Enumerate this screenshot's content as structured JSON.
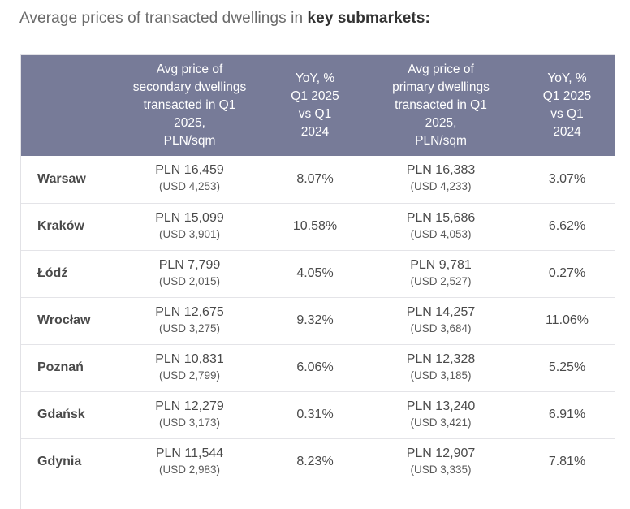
{
  "heading": {
    "prefix": "Average prices of transacted dwellings in ",
    "bold": "key submarkets:"
  },
  "table": {
    "headers": [
      "",
      "Avg price of secondary dwellings transacted in Q1 2025, PLN/sqm",
      "YoY, % Q1 2025 vs Q1 2024",
      "Avg price of primary dwellings transacted in Q1 2025, PLN/sqm",
      "YoY, % Q1 2025 vs Q1 2024"
    ],
    "header_lines": [
      [
        ""
      ],
      [
        "Avg price of",
        "secondary dwellings",
        "transacted in Q1",
        "2025,",
        "PLN/sqm"
      ],
      [
        "YoY, %",
        "Q1 2025",
        "vs Q1",
        "2024"
      ],
      [
        "Avg price of",
        "primary dwellings",
        "transacted in Q1",
        "2025,",
        "PLN/sqm"
      ],
      [
        "YoY, %",
        "Q1 2025",
        "vs Q1",
        "2024"
      ]
    ],
    "rows": [
      {
        "city": "Warsaw",
        "sec_pln": "PLN 16,459",
        "sec_usd": "(USD 4,253)",
        "sec_yoy": "8.07%",
        "pri_pln": "PLN 16,383",
        "pri_usd": "(USD 4,233)",
        "pri_yoy": "3.07%"
      },
      {
        "city": "Kraków",
        "sec_pln": "PLN 15,099",
        "sec_usd": "(USD 3,901)",
        "sec_yoy": "10.58%",
        "pri_pln": "PLN 15,686",
        "pri_usd": "(USD 4,053)",
        "pri_yoy": "6.62%"
      },
      {
        "city": "Łódź",
        "sec_pln": "PLN 7,799",
        "sec_usd": "(USD 2,015)",
        "sec_yoy": "4.05%",
        "pri_pln": "PLN 9,781",
        "pri_usd": "(USD 2,527)",
        "pri_yoy": "0.27%"
      },
      {
        "city": "Wrocław",
        "sec_pln": "PLN 12,675",
        "sec_usd": "(USD 3,275)",
        "sec_yoy": "9.32%",
        "pri_pln": "PLN 14,257",
        "pri_usd": "(USD 3,684)",
        "pri_yoy": "11.06%"
      },
      {
        "city": "Poznań",
        "sec_pln": "PLN 10,831",
        "sec_usd": "(USD 2,799)",
        "sec_yoy": "6.06%",
        "pri_pln": "PLN 12,328",
        "pri_usd": "(USD 3,185)",
        "pri_yoy": "5.25%"
      },
      {
        "city": "Gdańsk",
        "sec_pln": "PLN 12,279",
        "sec_usd": "(USD 3,173)",
        "sec_yoy": "0.31%",
        "pri_pln": "PLN 13,240",
        "pri_usd": "(USD 3,421)",
        "pri_yoy": "6.91%"
      },
      {
        "city": "Gdynia",
        "sec_pln": "PLN 11,544",
        "sec_usd": "(USD 2,983)",
        "sec_yoy": "8.23%",
        "pri_pln": "PLN 12,907",
        "pri_usd": "(USD 3,335)",
        "pri_yoy": "7.81%"
      }
    ]
  },
  "colors": {
    "header_bg": "#777b98",
    "header_text": "#ffffff",
    "row_border": "#e4e4e8"
  }
}
